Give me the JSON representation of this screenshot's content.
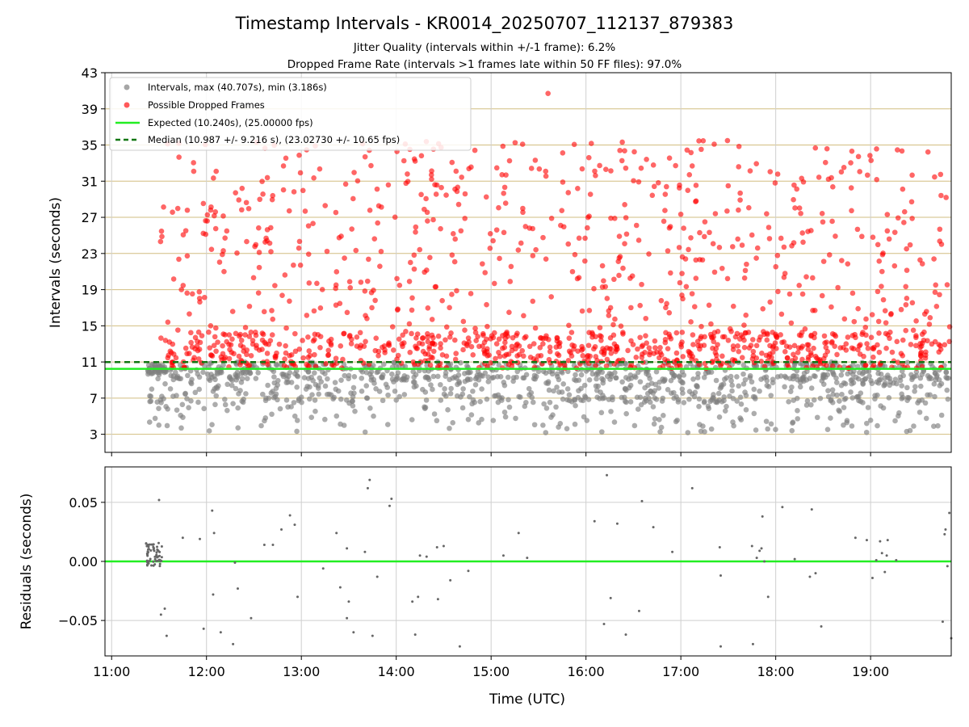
{
  "chart_data": [
    {
      "type": "scatter",
      "title": "Timestamp Intervals - KR0014_20250707_112137_879383",
      "subtitle_lines": [
        "Jitter Quality (intervals within +/-1 frame): 6.2%",
        "Dropped Frame Rate (intervals >1 frames late within 50 FF files): 97.0%"
      ],
      "xlabel": "",
      "ylabel": "Intervals (seconds)",
      "ylim": [
        1,
        43
      ],
      "y_ticks": [
        "3",
        "7",
        "11",
        "15",
        "19",
        "23",
        "27",
        "31",
        "35",
        "39",
        "43"
      ],
      "xlim_hours": [
        10.93,
        19.85
      ],
      "grid": true,
      "legend_position": "upper-left",
      "series": [
        {
          "name": "Intervals, max (40.707s), min (3.186s)",
          "color": "#808080",
          "marker": "circle",
          "max": 40.707,
          "min": 3.186,
          "range_hint": [
            3.186,
            11.2
          ]
        },
        {
          "name": "Possible Dropped Frames",
          "color": "#ff0000",
          "marker": "circle",
          "range_hint": [
            10.3,
            40.707
          ]
        },
        {
          "name": "Expected (10.240s), (25.00000 fps)",
          "color": "#22ee22",
          "style": "solid",
          "value": 10.24
        },
        {
          "name": "Median (10.987 +/- 9.216 s), (23.02730 +/- 10.65 fps)",
          "color": "#117711",
          "style": "dashed",
          "value": 10.987
        }
      ]
    },
    {
      "type": "scatter",
      "title": "",
      "xlabel": "Time (UTC)",
      "ylabel": "Residuals (seconds)",
      "ylim": [
        -0.08,
        0.08
      ],
      "y_ticks": [
        "0.05",
        "0.00",
        "−0.05"
      ],
      "y_tick_values": [
        0.05,
        0.0,
        -0.05
      ],
      "x_ticks": [
        "11:00",
        "12:00",
        "13:00",
        "14:00",
        "15:00",
        "16:00",
        "17:00",
        "18:00",
        "19:00"
      ],
      "x_tick_hours": [
        11,
        12,
        13,
        14,
        15,
        16,
        17,
        18,
        19
      ],
      "xlim_hours": [
        10.93,
        19.85
      ],
      "grid": true,
      "series": [
        {
          "name": "",
          "color": "#666666",
          "points": [
            [
              11.5,
              0.052
            ],
            [
              11.52,
              -0.045
            ],
            [
              11.56,
              -0.04
            ],
            [
              11.58,
              -0.063
            ],
            [
              11.75,
              0.02
            ],
            [
              11.93,
              0.019
            ],
            [
              11.97,
              -0.057
            ],
            [
              12.06,
              0.043
            ],
            [
              12.07,
              -0.028
            ],
            [
              12.08,
              0.024
            ],
            [
              12.15,
              -0.06
            ],
            [
              12.28,
              -0.07
            ],
            [
              12.3,
              -0.001
            ],
            [
              12.33,
              -0.023
            ],
            [
              12.47,
              -0.048
            ],
            [
              12.61,
              0.014
            ],
            [
              12.7,
              0.014
            ],
            [
              12.79,
              0.027
            ],
            [
              12.88,
              0.039
            ],
            [
              12.93,
              0.031
            ],
            [
              12.96,
              -0.03
            ],
            [
              13.23,
              -0.006
            ],
            [
              13.37,
              0.024
            ],
            [
              13.41,
              -0.022
            ],
            [
              13.48,
              0.011
            ],
            [
              13.5,
              -0.034
            ],
            [
              13.48,
              -0.048
            ],
            [
              13.55,
              -0.06
            ],
            [
              13.67,
              0.008
            ],
            [
              13.7,
              0.062
            ],
            [
              13.72,
              0.069
            ],
            [
              13.75,
              -0.063
            ],
            [
              13.8,
              -0.013
            ],
            [
              13.93,
              0.047
            ],
            [
              13.95,
              0.053
            ],
            [
              14.17,
              -0.034
            ],
            [
              14.2,
              -0.062
            ],
            [
              14.23,
              -0.03
            ],
            [
              14.25,
              0.005
            ],
            [
              14.32,
              0.004
            ],
            [
              14.43,
              0.012
            ],
            [
              14.44,
              -0.032
            ],
            [
              14.5,
              0.013
            ],
            [
              14.57,
              -0.016
            ],
            [
              14.67,
              -0.072
            ],
            [
              14.76,
              -0.008
            ],
            [
              15.13,
              0.005
            ],
            [
              15.29,
              0.024
            ],
            [
              15.38,
              0.003
            ],
            [
              16.09,
              0.034
            ],
            [
              16.19,
              -0.053
            ],
            [
              16.22,
              0.073
            ],
            [
              16.26,
              -0.031
            ],
            [
              16.33,
              0.032
            ],
            [
              16.42,
              -0.062
            ],
            [
              16.56,
              -0.042
            ],
            [
              16.59,
              0.051
            ],
            [
              16.71,
              0.029
            ],
            [
              16.91,
              0.008
            ],
            [
              17.12,
              0.062
            ],
            [
              17.41,
              0.012
            ],
            [
              17.42,
              -0.012
            ],
            [
              17.42,
              -0.072
            ],
            [
              17.75,
              0.013
            ],
            [
              17.76,
              -0.07
            ],
            [
              17.8,
              0.003
            ],
            [
              17.83,
              0.009
            ],
            [
              17.85,
              0.011
            ],
            [
              17.86,
              0.038
            ],
            [
              17.88,
              0.0
            ],
            [
              17.92,
              -0.03
            ],
            [
              18.07,
              0.046
            ],
            [
              18.2,
              0.002
            ],
            [
              18.36,
              -0.013
            ],
            [
              18.38,
              0.044
            ],
            [
              18.42,
              -0.01
            ],
            [
              18.48,
              -0.055
            ],
            [
              18.84,
              0.02
            ],
            [
              18.96,
              0.018
            ],
            [
              19.02,
              -0.014
            ],
            [
              19.06,
              0.001
            ],
            [
              19.1,
              0.017
            ],
            [
              19.12,
              0.007
            ],
            [
              19.15,
              -0.009
            ],
            [
              19.17,
              0.005
            ],
            [
              19.18,
              0.018
            ],
            [
              19.27,
              0.001
            ],
            [
              19.76,
              -0.051
            ],
            [
              19.78,
              0.023
            ],
            [
              19.79,
              0.027
            ],
            [
              19.81,
              -0.004
            ],
            [
              19.83,
              0.041
            ],
            [
              19.85,
              -0.065
            ]
          ]
        },
        {
          "name": "",
          "color": "#22ee22",
          "style": "solid",
          "value": 0.0
        }
      ]
    }
  ]
}
